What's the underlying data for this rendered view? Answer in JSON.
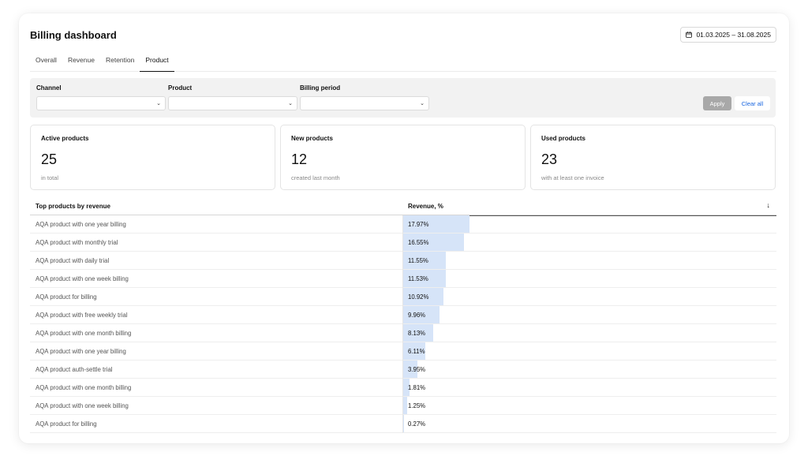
{
  "title": "Billing dashboard",
  "date_range": "01.03.2025 – 31.08.2025",
  "tabs": [
    {
      "label": "Overall",
      "active": false
    },
    {
      "label": "Revenue",
      "active": false
    },
    {
      "label": "Retention",
      "active": false
    },
    {
      "label": "Product",
      "active": true
    }
  ],
  "filters": {
    "channel_label": "Channel",
    "product_label": "Product",
    "billing_period_label": "Billing period",
    "apply_label": "Apply",
    "clear_label": "Clear all"
  },
  "stats": [
    {
      "label": "Active products",
      "value": "25",
      "sub": "in total"
    },
    {
      "label": "New products",
      "value": "12",
      "sub": "created last month"
    },
    {
      "label": "Used products",
      "value": "23",
      "sub": "with at least one invoice"
    }
  ],
  "table": {
    "col_name": "Top products by revenue",
    "col_revenue": "Revenue, %",
    "rows": [
      {
        "name": "AQA product with one year billing",
        "value": "17.97%",
        "pct": 17.97
      },
      {
        "name": "AQA product with monthly trial",
        "value": "16.55%",
        "pct": 16.55
      },
      {
        "name": "AQA product with daily trial",
        "value": "11.55%",
        "pct": 11.55
      },
      {
        "name": "AQA product with one week billing",
        "value": "11.53%",
        "pct": 11.53
      },
      {
        "name": "AQA product for billing",
        "value": "10.92%",
        "pct": 10.92
      },
      {
        "name": "AQA product with free weekly trial",
        "value": "9.96%",
        "pct": 9.96
      },
      {
        "name": "AQA product with one month billing",
        "value": "8.13%",
        "pct": 8.13
      },
      {
        "name": "AQA product with one year billing",
        "value": "6.11%",
        "pct": 6.11
      },
      {
        "name": "AQA product auth-settle trial",
        "value": "3.95%",
        "pct": 3.95
      },
      {
        "name": "AQA product with one month billing",
        "value": "1.81%",
        "pct": 1.81
      },
      {
        "name": "AQA product with one week billing",
        "value": "1.25%",
        "pct": 1.25
      },
      {
        "name": "AQA product for billing",
        "value": "0.27%",
        "pct": 0.27
      }
    ]
  },
  "icons": {
    "calendar": "calendar-icon",
    "sort": "arrow-down-icon",
    "select": "chevron-down-icon"
  },
  "colors": {
    "bar": "#d6e4f8",
    "accent": "#1a66e0",
    "apply_disabled": "#a8a8a8"
  }
}
